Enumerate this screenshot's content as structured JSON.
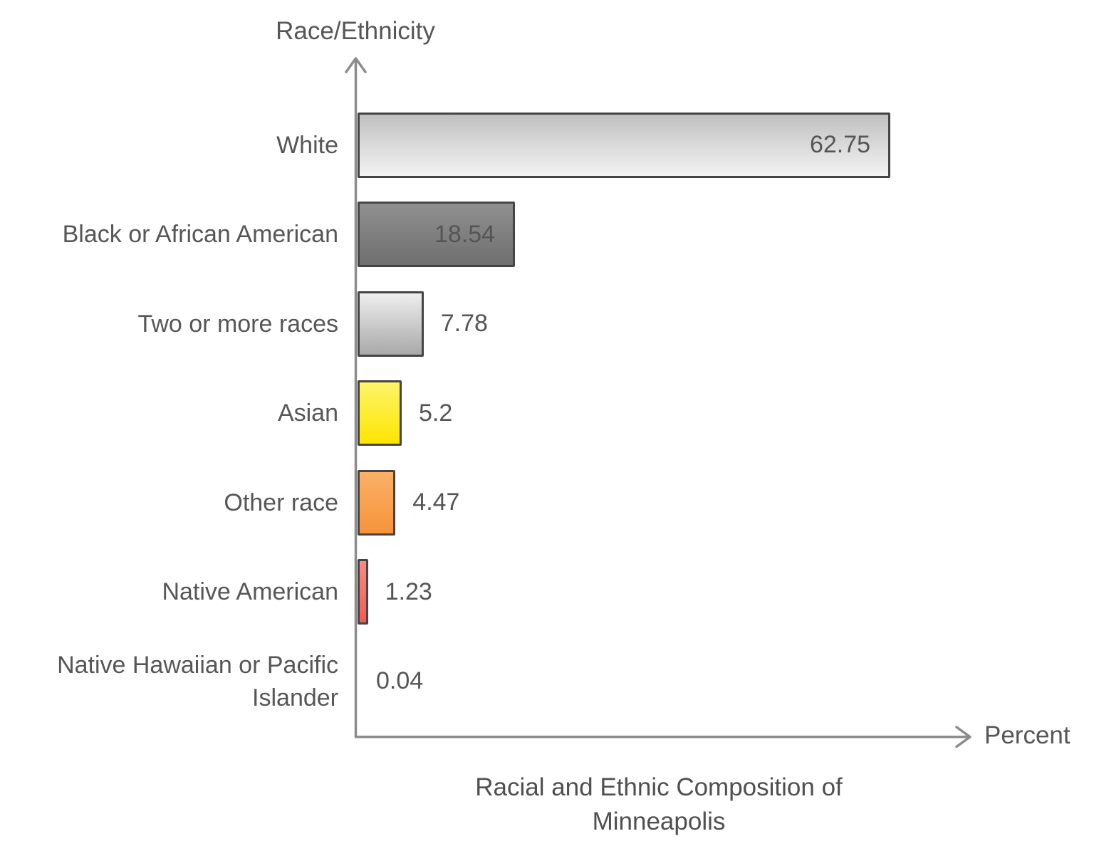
{
  "chart_data": {
    "type": "bar",
    "orientation": "horizontal",
    "title": "Racial and Ethnic Composition of Minneapolis",
    "title_lines": [
      "Racial and Ethnic Composition of",
      "Minneapolis"
    ],
    "xlabel": "Percent",
    "ylabel": "Race/Ethnicity",
    "xlim": [
      0,
      70
    ],
    "grid": false,
    "legend": "none",
    "categories": [
      "White",
      "Black or African American",
      "Two or more races",
      "Asian",
      "Other race",
      "Native American",
      "Native Hawaiian or Pacific Islander"
    ],
    "values": [
      62.75,
      18.54,
      7.78,
      5.2,
      4.47,
      1.23,
      0.04
    ],
    "value_labels": [
      "62.75",
      "18.54",
      "7.78",
      "5.2",
      "4.47",
      "1.23",
      "0.04"
    ],
    "bars": [
      {
        "category": "White",
        "value": 62.75,
        "value_inside": true,
        "gradient_top": "#c0c0c0",
        "gradient_bottom": "#f3f3f3"
      },
      {
        "category": "Black or African American",
        "value": 18.54,
        "value_inside": true,
        "gradient_top": "#909090",
        "gradient_bottom": "#6f6f6f"
      },
      {
        "category": "Two or more races",
        "value": 7.78,
        "value_inside": false,
        "gradient_top": "#eeeeee",
        "gradient_bottom": "#a9a9a9"
      },
      {
        "category": "Asian",
        "value": 5.2,
        "value_inside": false,
        "gradient_top": "#fdf469",
        "gradient_bottom": "#fee600"
      },
      {
        "category": "Other race",
        "value": 4.47,
        "value_inside": false,
        "gradient_top": "#fbb168",
        "gradient_bottom": "#f6933b"
      },
      {
        "category": "Native American",
        "value": 1.23,
        "value_inside": false,
        "gradient_top": "#fa8b83",
        "gradient_bottom": "#f55a52"
      },
      {
        "category": "Native Hawaiian or Pacific Islander",
        "value": 0.04,
        "value_inside": false,
        "gradient_top": "#ffffff",
        "gradient_bottom": "#ffffff"
      }
    ]
  },
  "colors": {
    "axis": "#8c8c8c",
    "bar_border": "#454545",
    "text": "#565656",
    "title_text": "#4f4f4f",
    "background": "#ffffff"
  }
}
